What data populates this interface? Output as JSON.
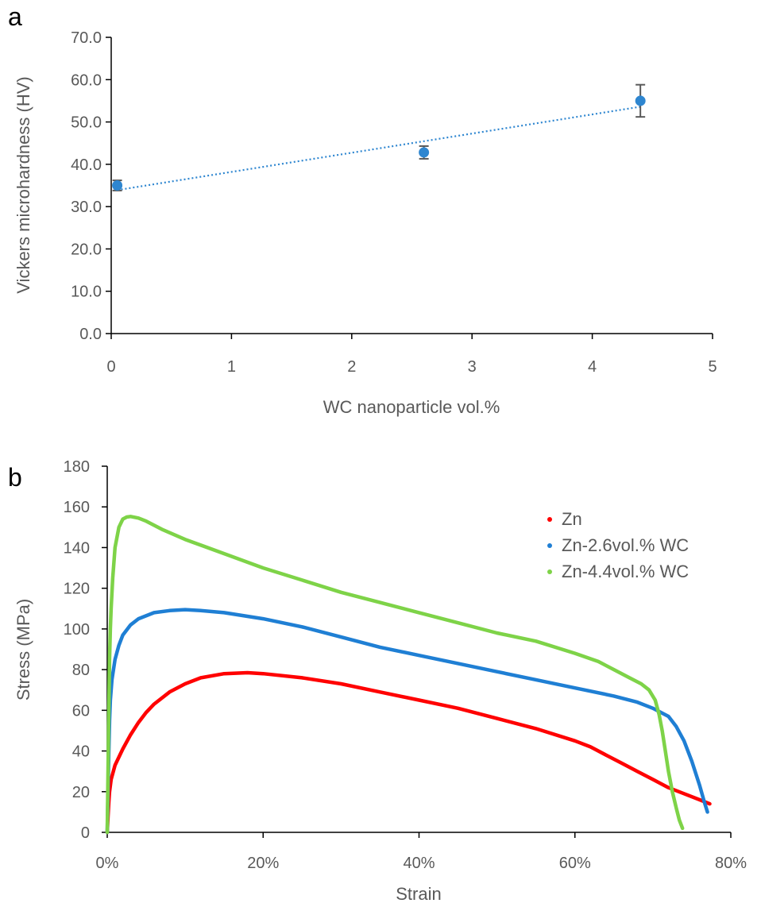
{
  "chart_data": [
    {
      "panel_label": "a",
      "type": "scatter",
      "xlabel": "WC nanoparticle vol.%",
      "ylabel": "Vickers microhardness (HV)",
      "xlim": [
        0,
        5
      ],
      "ylim": [
        0,
        70
      ],
      "x_ticks": [
        "0",
        "1",
        "2",
        "3",
        "4",
        "5"
      ],
      "y_ticks": [
        "0.0",
        "10.0",
        "20.0",
        "30.0",
        "40.0",
        "50.0",
        "60.0",
        "70.0"
      ],
      "grid": false,
      "points": [
        {
          "x": 0.05,
          "y": 35.0,
          "err": 1.2
        },
        {
          "x": 2.6,
          "y": 42.8,
          "err": 1.5
        },
        {
          "x": 4.4,
          "y": 55.0,
          "err": 3.8
        }
      ],
      "trendline": {
        "style": "dotted",
        "x": [
          0.05,
          4.4
        ],
        "y": [
          33.9,
          53.6
        ]
      },
      "colors": {
        "points": "#2e86d0",
        "error_bars": "#595959",
        "trendline": "#2e86d0"
      }
    },
    {
      "panel_label": "b",
      "type": "line",
      "xlabel": "Strain",
      "ylabel": "Stress (MPa)",
      "xlim": [
        0,
        80
      ],
      "ylim": [
        0,
        180
      ],
      "x_ticks": [
        "0%",
        "20%",
        "40%",
        "60%",
        "80%"
      ],
      "y_ticks": [
        "0",
        "20",
        "40",
        "60",
        "80",
        "100",
        "120",
        "140",
        "160",
        "180"
      ],
      "grid": false,
      "legend_position": "top-right",
      "series": [
        {
          "name": "Zn",
          "color": "#ff0000",
          "points": [
            [
              0,
              0
            ],
            [
              0.1,
              8
            ],
            [
              0.2,
              15
            ],
            [
              0.3,
              20
            ],
            [
              0.5,
              26
            ],
            [
              1,
              33
            ],
            [
              2,
              41
            ],
            [
              3,
              48
            ],
            [
              4,
              54
            ],
            [
              5,
              59
            ],
            [
              6,
              63
            ],
            [
              8,
              69
            ],
            [
              10,
              73
            ],
            [
              12,
              76
            ],
            [
              15,
              78
            ],
            [
              18,
              78.5
            ],
            [
              20,
              78
            ],
            [
              25,
              76
            ],
            [
              30,
              73
            ],
            [
              35,
              69
            ],
            [
              40,
              65
            ],
            [
              45,
              61
            ],
            [
              50,
              56
            ],
            [
              55,
              51
            ],
            [
              60,
              45
            ],
            [
              62,
              42
            ],
            [
              64,
              38
            ],
            [
              66,
              34
            ],
            [
              68,
              30
            ],
            [
              70,
              26
            ],
            [
              72,
              22
            ],
            [
              74,
              19
            ],
            [
              76,
              16
            ],
            [
              77.3,
              14
            ]
          ]
        },
        {
          "name": "Zn-2.6vol.% WC",
          "color": "#1f7fd4",
          "points": [
            [
              0,
              0
            ],
            [
              0.1,
              20
            ],
            [
              0.2,
              40
            ],
            [
              0.3,
              55
            ],
            [
              0.4,
              65
            ],
            [
              0.6,
              75
            ],
            [
              1,
              85
            ],
            [
              1.5,
              92
            ],
            [
              2,
              97
            ],
            [
              3,
              102
            ],
            [
              4,
              105
            ],
            [
              6,
              108
            ],
            [
              8,
              109
            ],
            [
              10,
              109.5
            ],
            [
              12,
              109
            ],
            [
              15,
              108
            ],
            [
              20,
              105
            ],
            [
              25,
              101
            ],
            [
              30,
              96
            ],
            [
              35,
              91
            ],
            [
              40,
              87
            ],
            [
              45,
              83
            ],
            [
              50,
              79
            ],
            [
              55,
              75
            ],
            [
              60,
              71
            ],
            [
              65,
              67
            ],
            [
              68,
              64
            ],
            [
              70,
              61
            ],
            [
              72,
              57
            ],
            [
              73,
              52
            ],
            [
              74,
              45
            ],
            [
              75,
              35
            ],
            [
              76,
              23
            ],
            [
              76.6,
              15
            ],
            [
              77,
              10
            ]
          ]
        },
        {
          "name": "Zn-4.4vol.% WC",
          "color": "#7ed348",
          "points": [
            [
              0,
              0
            ],
            [
              0.1,
              30
            ],
            [
              0.2,
              60
            ],
            [
              0.3,
              85
            ],
            [
              0.4,
              100
            ],
            [
              0.5,
              110
            ],
            [
              0.7,
              125
            ],
            [
              1,
              140
            ],
            [
              1.5,
              150
            ],
            [
              2,
              154
            ],
            [
              2.5,
              155
            ],
            [
              3,
              155.3
            ],
            [
              4,
              154.5
            ],
            [
              5,
              153
            ],
            [
              7,
              149
            ],
            [
              10,
              144
            ],
            [
              15,
              137
            ],
            [
              20,
              130
            ],
            [
              25,
              124
            ],
            [
              30,
              118
            ],
            [
              35,
              113
            ],
            [
              40,
              108
            ],
            [
              45,
              103
            ],
            [
              50,
              98
            ],
            [
              55,
              94
            ],
            [
              60,
              88
            ],
            [
              63,
              84
            ],
            [
              65,
              80
            ],
            [
              67,
              76
            ],
            [
              68.5,
              73
            ],
            [
              69.5,
              70
            ],
            [
              70.3,
              65
            ],
            [
              70.8,
              58
            ],
            [
              71.2,
              50
            ],
            [
              71.6,
              40
            ],
            [
              72,
              30
            ],
            [
              72.5,
              20
            ],
            [
              73,
              12
            ],
            [
              73.4,
              6
            ],
            [
              73.8,
              2
            ]
          ]
        }
      ]
    }
  ]
}
